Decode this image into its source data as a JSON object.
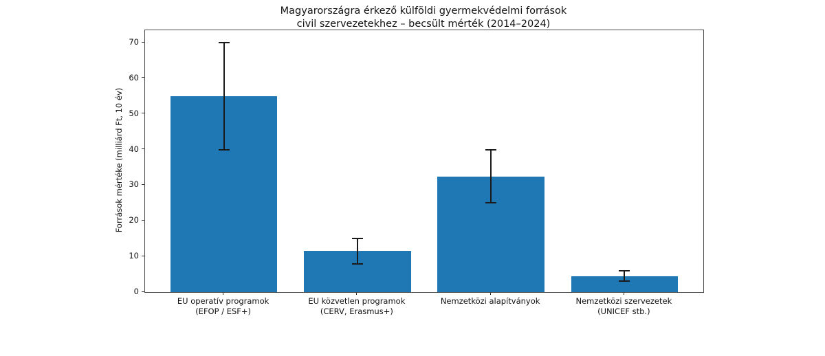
{
  "chart_data": {
    "type": "bar",
    "title": "Magyarországra érkező külföldi gyermekvédelmi források",
    "subtitle": "civil szervezetekhez – becsült mérték (2014–2024)",
    "ylabel": "Források mértéke (milliárd Ft, 10 év)",
    "xlabel": "",
    "categories": [
      {
        "line1": "EU operatív programok",
        "line2": "(EFOP / ESF+)"
      },
      {
        "line1": "EU közvetlen programok",
        "line2": "(CERV, Erasmus+)"
      },
      {
        "line1": "Nemzetközi alapítványok",
        "line2": ""
      },
      {
        "line1": "Nemzetközi szervezetek",
        "line2": "(UNICEF stb.)"
      }
    ],
    "values": [
      55,
      11.5,
      32.5,
      4.5
    ],
    "errors": [
      15,
      3.5,
      7.5,
      1.5
    ],
    "error_ranges": [
      [
        40,
        70
      ],
      [
        8,
        15
      ],
      [
        25,
        40
      ],
      [
        3,
        6
      ]
    ],
    "yticks": [
      0,
      10,
      20,
      30,
      40,
      50,
      60,
      70
    ],
    "ylim": [
      0,
      73.5
    ],
    "grid": false,
    "legend": "none",
    "bar_color": "#1f77b4",
    "error_color": "#1a1a1a"
  }
}
